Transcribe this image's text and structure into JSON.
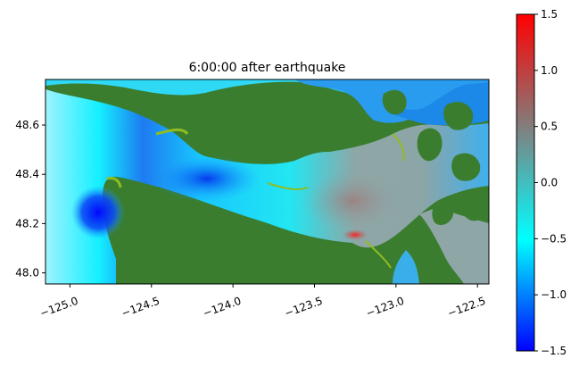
{
  "chart_data": {
    "type": "heatmap",
    "title": "6:00:00 after earthquake",
    "xlabel": "",
    "ylabel": "",
    "x_ticks": [
      "−125.0",
      "−124.5",
      "−124.0",
      "−123.5",
      "−123.0",
      "−122.5"
    ],
    "x_tick_values": [
      -125.0,
      -124.5,
      -124.0,
      -123.5,
      -123.0,
      -122.5
    ],
    "y_ticks": [
      "48.0",
      "48.2",
      "48.4",
      "48.6"
    ],
    "y_tick_values": [
      48.0,
      48.2,
      48.4,
      48.6
    ],
    "xlim": [
      -125.15,
      -122.43
    ],
    "ylim": [
      47.955,
      48.785
    ],
    "colorbar": {
      "range": [
        -1.5,
        1.5
      ],
      "ticks": [
        "1.5",
        "1.0",
        "0.5",
        "0.0",
        "−0.5",
        "−1.0",
        "−1.5"
      ],
      "tick_values": [
        1.5,
        1.0,
        0.5,
        0.0,
        -0.5,
        -1.0,
        -1.5
      ],
      "colormap": [
        "#0000ff",
        "#00ffff",
        "#808080",
        "#ff0000"
      ]
    },
    "land_color": "#3a7d2e",
    "shore_color": "#8fbc22",
    "grid": false
  }
}
